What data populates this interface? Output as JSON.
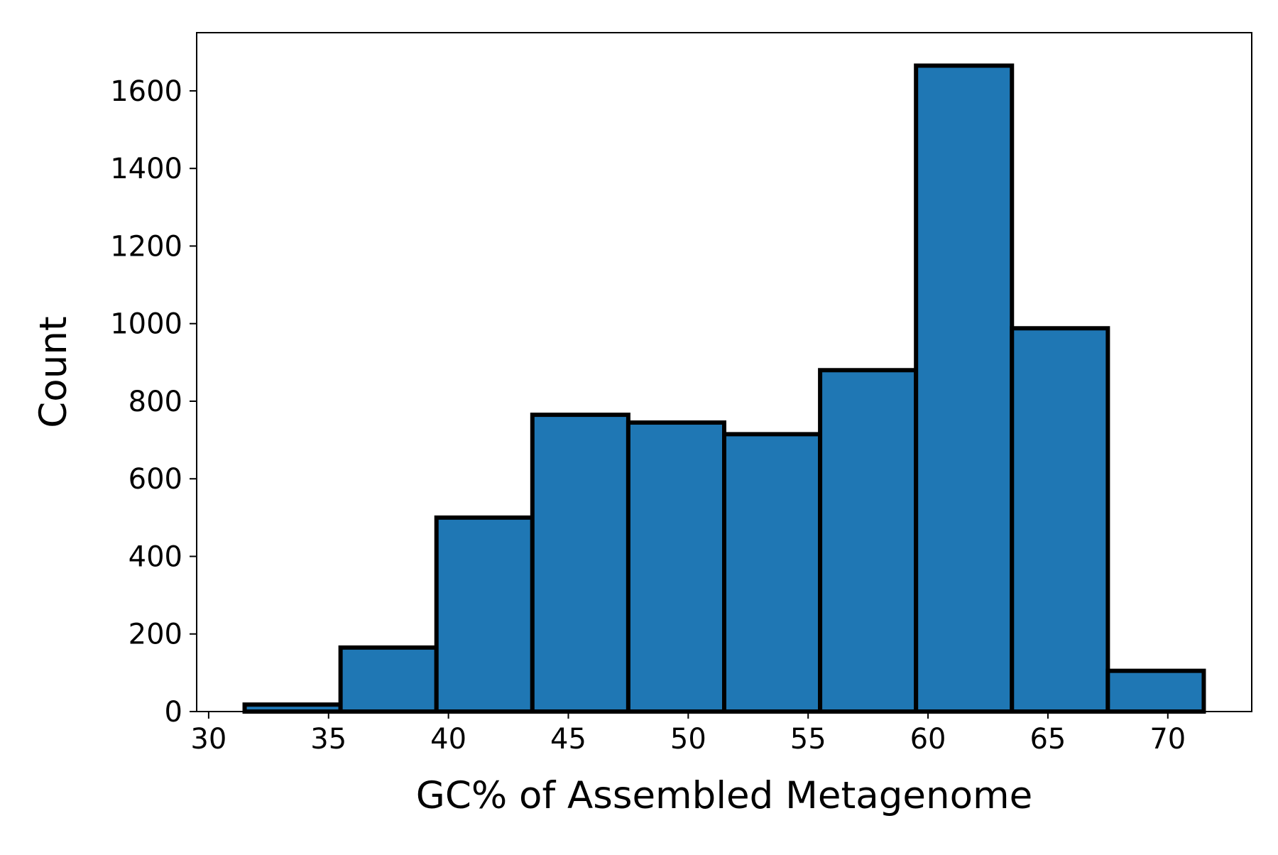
{
  "chart_data": {
    "type": "bar",
    "subtype": "histogram",
    "title": "",
    "xlabel": "GC% of Assembled Metagenome",
    "ylabel": "Count",
    "xlim": [
      29.5,
      73.5
    ],
    "ylim": [
      0,
      1750
    ],
    "xticks": [
      30,
      35,
      40,
      45,
      50,
      55,
      60,
      65,
      70
    ],
    "yticks": [
      0,
      200,
      400,
      600,
      800,
      1000,
      1200,
      1400,
      1600
    ],
    "bin_edges": [
      31.5,
      35.5,
      39.5,
      43.5,
      47.5,
      51.5,
      55.5,
      59.5,
      63.5,
      67.5,
      71.5
    ],
    "values": [
      18,
      165,
      500,
      765,
      745,
      715,
      880,
      1665,
      988,
      105
    ],
    "bar_color": "#1f77b4",
    "edge_color": "#000000",
    "grid": false,
    "legend": false
  }
}
